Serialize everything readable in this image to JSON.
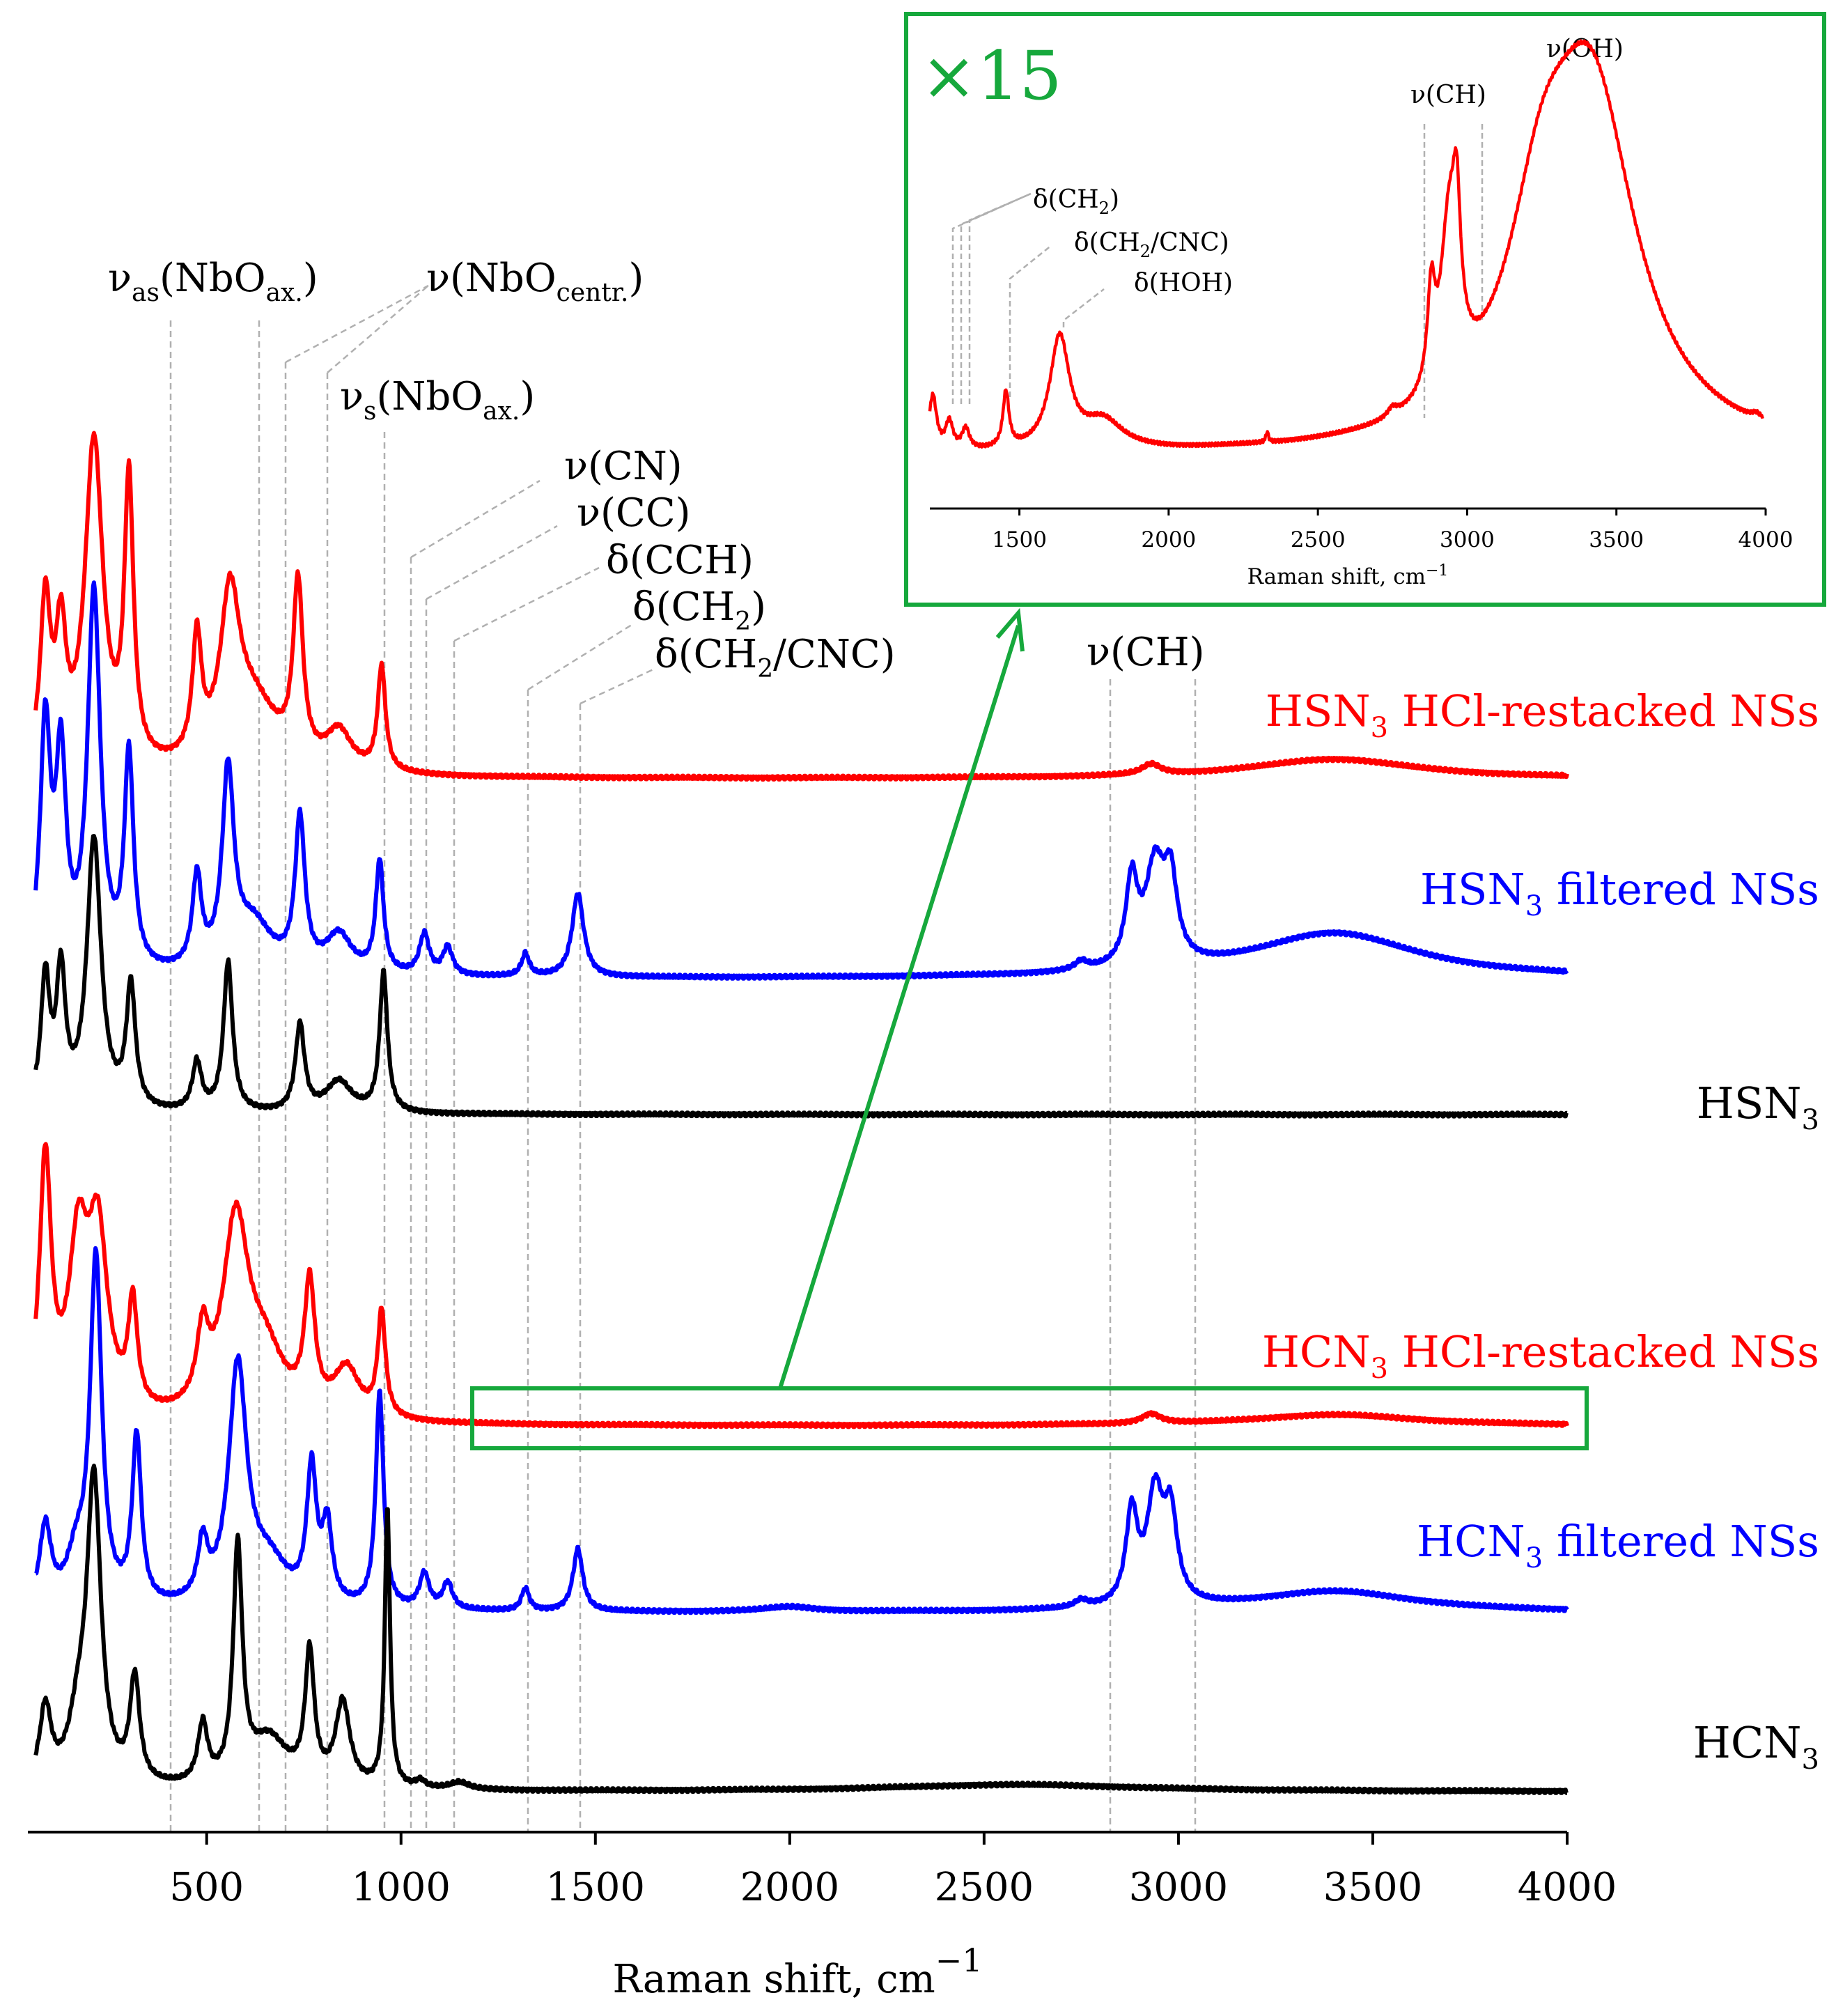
{
  "chart_data": [
    {
      "type": "line",
      "title": "",
      "xlabel": "Raman shift, cm",
      "xlabel_sup": "−1",
      "ylabel": "",
      "xlim": [
        40,
        4000
      ],
      "xticks": [
        500,
        1000,
        1500,
        2000,
        2500,
        3000,
        3500,
        4000
      ],
      "legend": "labels at right end of each trace",
      "series": [
        {
          "name": "HSN3 HCl-restacked NSs",
          "label_main": "HSN",
          "label_sub": "3",
          "label_rest": " HCl-restacked NSs",
          "color": "#ff0000",
          "baseline": 1118,
          "peaks": [
            [
              85,
              235,
              16
            ],
            [
              125,
              180,
              16
            ],
            [
              210,
              470,
              28
            ],
            [
              300,
              400,
              14
            ],
            [
              475,
              170,
              14
            ],
            [
              560,
              220,
              30
            ],
            [
              620,
              95,
              80
            ],
            [
              735,
              250,
              15
            ],
            [
              840,
              55,
              40
            ],
            [
              950,
              150,
              12
            ],
            [
              2930,
              15,
              30
            ],
            [
              3400,
              28,
              260
            ]
          ]
        },
        {
          "name": "HSN3 filtered NSs",
          "label_main": "HSN",
          "label_sub": "3",
          "label_rest": " filtered NSs",
          "color": "#0000ff",
          "baseline": 1405,
          "peaks": [
            [
              85,
              345,
              16
            ],
            [
              125,
              290,
              16
            ],
            [
              210,
              540,
              20
            ],
            [
              300,
              305,
              14
            ],
            [
              475,
              130,
              14
            ],
            [
              555,
              275,
              18
            ],
            [
              620,
              70,
              60
            ],
            [
              740,
              215,
              15
            ],
            [
              840,
              55,
              40
            ],
            [
              945,
              160,
              12
            ],
            [
              1060,
              58,
              15
            ],
            [
              1120,
              40,
              15
            ],
            [
              1320,
              32,
              12
            ],
            [
              1455,
              120,
              18
            ],
            [
              2750,
              12,
              20
            ],
            [
              2880,
              120,
              18
            ],
            [
              2940,
              140,
              30
            ],
            [
              2980,
              110,
              20
            ],
            [
              3400,
              65,
              260
            ]
          ]
        },
        {
          "name": "HSN3",
          "label_main": "HSN",
          "label_sub": "3",
          "label_rest": "",
          "color": "#000000",
          "baseline": 1600,
          "peaks": [
            [
              85,
              185,
              14
            ],
            [
              125,
              190,
              14
            ],
            [
              210,
              390,
              22
            ],
            [
              305,
              175,
              14
            ],
            [
              475,
              70,
              14
            ],
            [
              555,
              215,
              14
            ],
            [
              740,
              125,
              14
            ],
            [
              840,
              45,
              40
            ],
            [
              955,
              200,
              12
            ]
          ]
        },
        {
          "name": "HCN3 HCl-restacked NSs",
          "label_main": "HCN",
          "label_sub": "3",
          "label_rest": " HCl-restacked NSs",
          "color": "#ff0000",
          "baseline": 2047,
          "peaks": [
            [
              85,
              365,
              18
            ],
            [
              170,
              235,
              30
            ],
            [
              220,
              250,
              30
            ],
            [
              310,
              150,
              14
            ],
            [
              490,
              100,
              18
            ],
            [
              575,
              275,
              40
            ],
            [
              650,
              85,
              60
            ],
            [
              765,
              180,
              16
            ],
            [
              860,
              70,
              40
            ],
            [
              950,
              150,
              12
            ],
            [
              2930,
              14,
              30
            ],
            [
              3400,
              16,
              260
            ]
          ]
        },
        {
          "name": "HCN3 filtered NSs",
          "label_main": "HCN",
          "label_sub": "3",
          "label_rest": " filtered NSs",
          "color": "#0000ff",
          "baseline": 2315,
          "peaks": [
            [
              85,
              115,
              18
            ],
            [
              165,
              65,
              30
            ],
            [
              215,
              495,
              18
            ],
            [
              320,
              240,
              14
            ],
            [
              490,
              80,
              15
            ],
            [
              580,
              340,
              28
            ],
            [
              660,
              60,
              60
            ],
            [
              770,
              190,
              15
            ],
            [
              810,
              110,
              15
            ],
            [
              945,
              310,
              12
            ],
            [
              1060,
              50,
              15
            ],
            [
              1120,
              38,
              15
            ],
            [
              1320,
              32,
              12
            ],
            [
              1455,
              90,
              15
            ],
            [
              2000,
              7,
              80
            ],
            [
              2750,
              10,
              20
            ],
            [
              2880,
              130,
              18
            ],
            [
              2940,
              155,
              25
            ],
            [
              2980,
              120,
              20
            ],
            [
              3400,
              30,
              260
            ]
          ]
        },
        {
          "name": "HCN3",
          "label_main": "HCN",
          "label_sub": "3",
          "label_rest": "",
          "color": "#000000",
          "baseline": 2572,
          "peaks": [
            [
              85,
              110,
              18
            ],
            [
              170,
              80,
              30
            ],
            [
              210,
              430,
              22
            ],
            [
              315,
              150,
              15
            ],
            [
              490,
              85,
              15
            ],
            [
              580,
              335,
              14
            ],
            [
              660,
              70,
              60
            ],
            [
              765,
              185,
              14
            ],
            [
              850,
              120,
              22
            ],
            [
              965,
              400,
              8
            ],
            [
              1050,
              10,
              15
            ],
            [
              1150,
              10,
              30
            ],
            [
              2580,
              10,
              400
            ]
          ]
        }
      ],
      "annotations": {
        "vas_main": "ν",
        "vas_sub": "as",
        "vas_rest": "(NbO",
        "vas_sub2": "ax.",
        "vas_close": ")",
        "vcentr_main": "ν(NbO",
        "vcentr_sub": "centr.",
        "vcentr_close": ")",
        "vs_main": "ν",
        "vs_sub": "s",
        "vs_rest": "(NbO",
        "vs_sub2": "ax.",
        "vs_close": ")",
        "vCN": "ν(CN)",
        "vCC": "ν(CC)",
        "dCCH": "δ(CCH)",
        "dCH2_main": "δ(CH",
        "dCH2_sub": "2",
        "dCH2_close": ")",
        "dCH2CNC_main": "δ(CH",
        "dCH2CNC_sub": "2",
        "dCH2CNC_rest": "/CNC)",
        "vCH": "ν(CH)"
      }
    },
    {
      "type": "line",
      "title": "×15",
      "xlabel": "Raman shift, cm",
      "xlabel_sup": "−1",
      "xlim": [
        1200,
        4000
      ],
      "xticks": [
        1500,
        2000,
        2500,
        3000,
        3500,
        4000
      ],
      "series": [
        {
          "name": "HCN3 HCl-restacked NSs (×15 zoom)",
          "color": "#ff0000",
          "baseline": 655,
          "peaks": [
            [
              1210,
              80,
              15
            ],
            [
              1265,
              40,
              15
            ],
            [
              1320,
              30,
              15
            ],
            [
              1455,
              80,
              12
            ],
            [
              1635,
              160,
              40
            ],
            [
              1780,
              40,
              80
            ],
            [
              2330,
              15,
              5
            ],
            [
              2750,
              12,
              20
            ],
            [
              2880,
              130,
              15
            ],
            [
              2940,
              240,
              35
            ],
            [
              2965,
              160,
              15
            ],
            [
              3250,
              250,
              140
            ],
            [
              3420,
              480,
              180
            ],
            [
              3970,
              8,
              20
            ]
          ]
        }
      ],
      "annotations": {
        "dCH2_main": "δ(CH",
        "dCH2_sub": "2",
        "dCH2_close": ")",
        "dCH2CNC_main": "δ(CH",
        "dCH2CNC_sub": "2",
        "dCH2CNC_rest": "/CNC)",
        "dHOH": "δ(HOH)",
        "vCH": "ν(CH)",
        "vOH": "ν(OH)"
      }
    }
  ],
  "colors": {
    "highlight": "#16a83c",
    "guide": "#b0b0b0"
  }
}
